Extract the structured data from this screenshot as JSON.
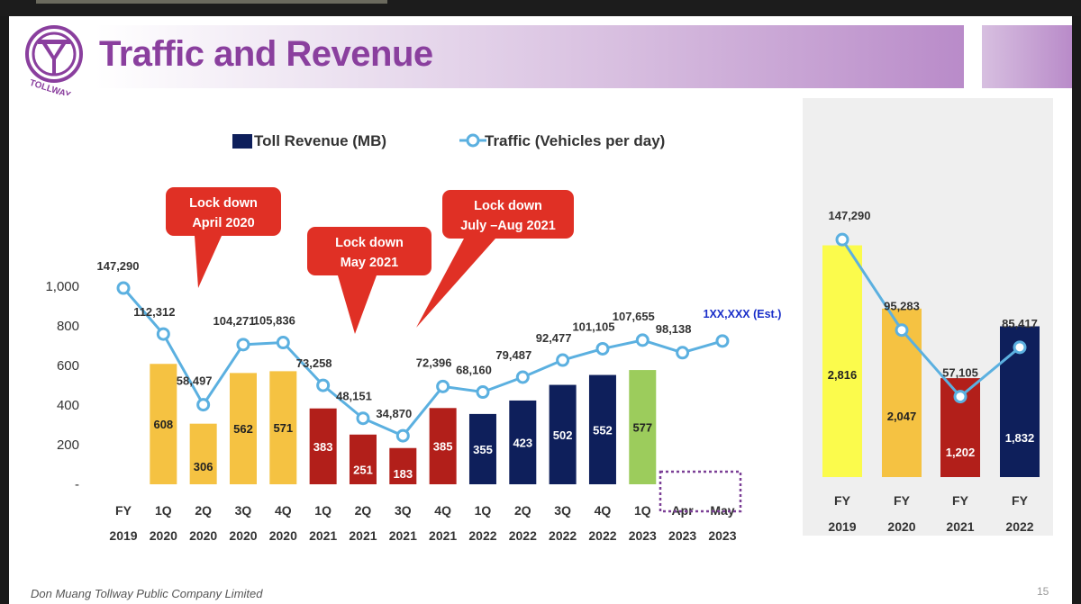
{
  "slide": {
    "title": "Traffic and Revenue",
    "logo_text": "TOLLWAY",
    "footer": "Don Muang Tollway Public Company Limited",
    "page_number": "15",
    "colors": {
      "title": "#8a3f9e",
      "line": "#5bb0e0",
      "yellow_bar": "#f5c242",
      "red_bar": "#b21f1a",
      "navy_bar": "#0e1f5b",
      "green_bar": "#9ccc5c",
      "bright_yellow": "#fbfb4c",
      "callout": "#e03025"
    }
  },
  "chart_data": [
    {
      "type": "bar",
      "legend": [
        {
          "label": "Toll Revenue (MB)",
          "kind": "bar"
        },
        {
          "label": "Traffic (Vehicles per day)",
          "kind": "line"
        }
      ],
      "categories": [
        "FY 2019",
        "1Q 2020",
        "2Q 2020",
        "3Q 2020",
        "4Q 2020",
        "1Q 2021",
        "2Q 2021",
        "3Q 2021",
        "4Q 2021",
        "1Q 2022",
        "2Q 2022",
        "3Q 2022",
        "4Q 2022",
        "1Q 2023",
        "Apr 2023",
        "May 2023"
      ],
      "cat_top": [
        "FY",
        "1Q",
        "2Q",
        "3Q",
        "4Q",
        "1Q",
        "2Q",
        "3Q",
        "4Q",
        "1Q",
        "2Q",
        "3Q",
        "4Q",
        "1Q",
        "Apr",
        "May"
      ],
      "cat_bottom": [
        "2019",
        "2020",
        "2020",
        "2020",
        "2020",
        "2021",
        "2021",
        "2021",
        "2021",
        "2022",
        "2022",
        "2022",
        "2022",
        "2023",
        "2023",
        "2023"
      ],
      "series": [
        {
          "name": "Toll Revenue (MB)",
          "values": [
            null,
            608,
            306,
            562,
            571,
            383,
            251,
            183,
            385,
            355,
            423,
            502,
            552,
            577,
            null,
            null
          ],
          "labels": [
            "",
            "608",
            "306",
            "562",
            "571",
            "383",
            "251",
            "183",
            "385",
            "355",
            "423",
            "502",
            "552",
            "577",
            "",
            ""
          ],
          "colors": [
            "none",
            "#f5c242",
            "#f5c242",
            "#f5c242",
            "#f5c242",
            "#b21f1a",
            "#b21f1a",
            "#b21f1a",
            "#b21f1a",
            "#0e1f5b",
            "#0e1f5b",
            "#0e1f5b",
            "#0e1f5b",
            "#9ccc5c",
            "none",
            "none"
          ]
        },
        {
          "name": "Traffic (Vehicles per day)",
          "values": [
            147290,
            112312,
            58497,
            104271,
            105836,
            73258,
            48151,
            34870,
            72396,
            68160,
            79487,
            92477,
            101105,
            107655,
            98138,
            107000
          ],
          "labels": [
            "147,290",
            "112,312",
            "58,497",
            "104,271",
            "105,836",
            "73,258",
            "48,151",
            "34,870",
            "72,396",
            "68,160",
            "79,487",
            "92,477",
            "101,105",
            "107,655",
            "98,138",
            "1XX,XXX (Est.)"
          ]
        }
      ],
      "yaxis": {
        "ticks": [
          "-",
          "200",
          "400",
          "600",
          "800",
          "1,000"
        ],
        "ylim": [
          0,
          1000
        ]
      },
      "traffic_range": [
        0,
        148000
      ],
      "annotations": [
        {
          "line1": "Lock down",
          "line2": "April 2020"
        },
        {
          "line1": "Lock down",
          "line2": "May 2021"
        },
        {
          "line1": "Lock down",
          "line2": "July –Aug 2021"
        }
      ]
    },
    {
      "type": "bar",
      "categories": [
        "FY 2019",
        "FY 2020",
        "FY 2021",
        "FY 2022"
      ],
      "cat_top": [
        "FY",
        "FY",
        "FY",
        "FY"
      ],
      "cat_bottom": [
        "2019",
        "2020",
        "2021",
        "2022"
      ],
      "series": [
        {
          "name": "Toll Revenue (MB)",
          "values": [
            2816,
            2047,
            1202,
            1832
          ],
          "labels": [
            "2,816",
            "2,047",
            "1,202",
            "1,832"
          ],
          "colors": [
            "#fbfb4c",
            "#f5c242",
            "#b21f1a",
            "#0e1f5b"
          ]
        },
        {
          "name": "Traffic (Vehicles per day)",
          "values": [
            147290,
            95283,
            57105,
            85417
          ],
          "labels": [
            "147,290",
            "95,283",
            "57,105",
            "85,417"
          ]
        }
      ],
      "ylim": [
        0,
        3500
      ],
      "traffic_range": [
        0,
        148000
      ]
    }
  ]
}
